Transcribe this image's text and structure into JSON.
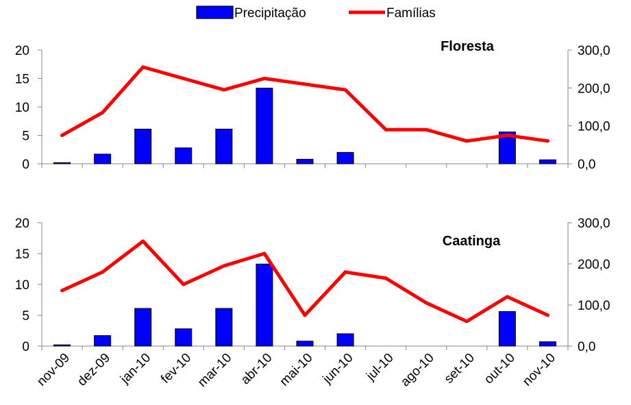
{
  "legend": {
    "items": [
      {
        "label": "Precipitação",
        "color": "#0000FF",
        "kind": "bar"
      },
      {
        "label": "Famílias",
        "color": "#FF0000",
        "kind": "line"
      }
    ]
  },
  "chart_data": [
    {
      "type": "bar+line",
      "panel_title": "Floresta",
      "categories": [
        "nov-09",
        "dez-09",
        "jan-10",
        "fev-10",
        "mar-10",
        "abr-10",
        "mai-10",
        "jun-10",
        "jul-10",
        "ago-10",
        "set-10",
        "out-10",
        "nov-10"
      ],
      "series": [
        {
          "name": "Precipitação",
          "type": "bar",
          "axis": "left",
          "color": "#0000FF",
          "values": [
            0.2,
            1.7,
            6.1,
            2.8,
            6.1,
            13.3,
            0.8,
            2.0,
            0,
            0,
            0,
            5.6,
            0.7
          ]
        },
        {
          "name": "Famílias",
          "type": "line",
          "axis": "right",
          "color": "#FF0000",
          "values": [
            75,
            135,
            255,
            225,
            195,
            225,
            210,
            195,
            90,
            90,
            60,
            75,
            60
          ]
        }
      ],
      "y_left": {
        "min": 0,
        "max": 20,
        "ticks": [
          "0",
          "5",
          "10",
          "15",
          "20"
        ],
        "tick_values": [
          0,
          5,
          10,
          15,
          20
        ]
      },
      "y_right": {
        "min": 0,
        "max": 300,
        "ticks": [
          "0,0",
          "100,0",
          "200,0",
          "300,0"
        ],
        "tick_values": [
          0,
          100,
          200,
          300
        ]
      },
      "grid": false
    },
    {
      "type": "bar+line",
      "panel_title": "Caatinga",
      "categories": [
        "nov-09",
        "dez-09",
        "jan-10",
        "fev-10",
        "mar-10",
        "abr-10",
        "mai-10",
        "jun-10",
        "jul-10",
        "ago-10",
        "set-10",
        "out-10",
        "nov-10"
      ],
      "series": [
        {
          "name": "Precipitação",
          "type": "bar",
          "axis": "left",
          "color": "#0000FF",
          "values": [
            0.2,
            1.7,
            6.1,
            2.8,
            6.1,
            13.3,
            0.8,
            2.0,
            0,
            0,
            0,
            5.6,
            0.7
          ]
        },
        {
          "name": "Famílias",
          "type": "line",
          "axis": "right",
          "color": "#FF0000",
          "values": [
            135,
            180,
            255,
            150,
            195,
            225,
            75,
            180,
            165,
            105,
            60,
            120,
            75
          ]
        }
      ],
      "y_left": {
        "min": 0,
        "max": 20,
        "ticks": [
          "0",
          "5",
          "10",
          "15",
          "20"
        ],
        "tick_values": [
          0,
          5,
          10,
          15,
          20
        ]
      },
      "y_right": {
        "min": 0,
        "max": 300,
        "ticks": [
          "0,0",
          "100,0",
          "200,0",
          "300,0"
        ],
        "tick_values": [
          0,
          100,
          200,
          300
        ]
      },
      "grid": false
    }
  ]
}
